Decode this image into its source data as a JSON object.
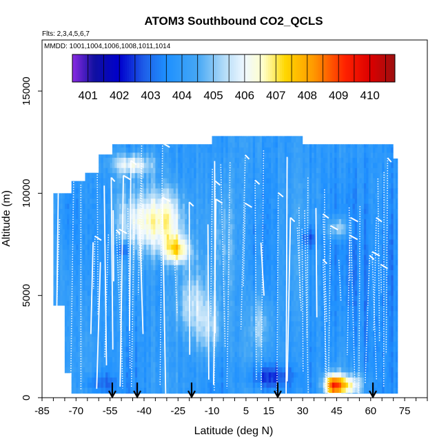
{
  "chart_data": {
    "type": "heatmap",
    "title": "ATOM3 Southbound CO2_QCLS",
    "flights_note": "Flts: 2,3,4,5,6,7",
    "mmdd_note": "MMDD: 1001,1004,1006,1008,1011,1014",
    "xlabel": "Latitude (deg N)",
    "ylabel": "Altitude (m)",
    "xlim": [
      -85,
      85
    ],
    "ylim": [
      0,
      17500
    ],
    "x_ticks": [
      -85,
      -70,
      -55,
      -40,
      -25,
      -10,
      5,
      15,
      30,
      45,
      60,
      75
    ],
    "y_ticks": [
      0,
      5000,
      10000,
      15000
    ],
    "colorbar": {
      "labels": [
        "401",
        "402",
        "403",
        "404",
        "405",
        "406",
        "407",
        "408",
        "409",
        "410"
      ],
      "range": [
        400.5,
        410.8
      ],
      "stops": [
        {
          "v": 400.5,
          "c": "#8a2be2"
        },
        {
          "v": 401.2,
          "c": "#1010a0"
        },
        {
          "v": 402.0,
          "c": "#0000cd"
        },
        {
          "v": 402.8,
          "c": "#1e5fe8"
        },
        {
          "v": 403.5,
          "c": "#1e90ff"
        },
        {
          "v": 404.5,
          "c": "#46a8f5"
        },
        {
          "v": 405.4,
          "c": "#b8def8"
        },
        {
          "v": 406.0,
          "c": "#f0f8ff"
        },
        {
          "v": 406.6,
          "c": "#ffffc8"
        },
        {
          "v": 407.3,
          "c": "#ffd700"
        },
        {
          "v": 408.2,
          "c": "#ff9900"
        },
        {
          "v": 409.2,
          "c": "#ff2200"
        },
        {
          "v": 410.0,
          "c": "#dd0000"
        },
        {
          "v": 410.8,
          "c": "#9c1010"
        }
      ]
    },
    "arrows_latitude": [
      -54,
      -43,
      -19,
      19,
      61
    ],
    "coverage_top_m": [
      {
        "lat": -80,
        "alt": 10000
      },
      {
        "lat": -72,
        "alt": 10600
      },
      {
        "lat": -66,
        "alt": 11000
      },
      {
        "lat": -60,
        "alt": 11900
      },
      {
        "lat": -54,
        "alt": 12400
      },
      {
        "lat": -20,
        "alt": 12400
      },
      {
        "lat": -10,
        "alt": 12800
      },
      {
        "lat": 27,
        "alt": 12800
      },
      {
        "lat": 30,
        "alt": 12400
      },
      {
        "lat": 66,
        "alt": 12400
      },
      {
        "lat": 70,
        "alt": 11700
      },
      {
        "lat": 72,
        "alt": 10500
      }
    ],
    "coverage_bottom_m": [
      {
        "lat": -80,
        "alt": 4500
      },
      {
        "lat": -75,
        "alt": 1200
      },
      {
        "lat": -72,
        "alt": 200
      },
      {
        "lat": 72,
        "alt": 0
      }
    ],
    "base_value": 403.9,
    "features": [
      {
        "lat": -42,
        "alt": 8500,
        "rlat": 10,
        "ralt": 1500,
        "value": 405.8
      },
      {
        "lat": -30,
        "alt": 8600,
        "rlat": 8,
        "ralt": 1600,
        "value": 406.4
      },
      {
        "lat": -26,
        "alt": 7100,
        "rlat": 6,
        "ralt": 700,
        "value": 406.7
      },
      {
        "lat": -46,
        "alt": 11300,
        "rlat": 9,
        "ralt": 500,
        "value": 406.1
      },
      {
        "lat": -50,
        "alt": 7100,
        "rlat": 3,
        "ralt": 400,
        "value": 402.0
      },
      {
        "lat": -20,
        "alt": 4700,
        "rlat": 8,
        "ralt": 1600,
        "value": 405.4
      },
      {
        "lat": -12,
        "alt": 3200,
        "rlat": 7,
        "ralt": 1400,
        "value": 405.2
      },
      {
        "lat": 11,
        "alt": 3500,
        "rlat": 5,
        "ralt": 1400,
        "value": 405.0
      },
      {
        "lat": 43,
        "alt": 500,
        "rlat": 4,
        "ralt": 550,
        "value": 408.6
      },
      {
        "lat": 50,
        "alt": 500,
        "rlat": 6,
        "ralt": 500,
        "value": 406.6
      },
      {
        "lat": 15,
        "alt": 900,
        "rlat": 10,
        "ralt": 600,
        "value": 402.4
      },
      {
        "lat": 32,
        "alt": 7700,
        "rlat": 4,
        "ralt": 500,
        "value": 402.6
      },
      {
        "lat": 45,
        "alt": 8200,
        "rlat": 5,
        "ralt": 500,
        "value": 405.6
      },
      {
        "lat": 55,
        "alt": 5500,
        "rlat": 12,
        "ralt": 5000,
        "value": 403.4
      },
      {
        "lat": -74,
        "alt": 9000,
        "rlat": 4,
        "ralt": 2000,
        "value": 403.4
      },
      {
        "lat": 68,
        "alt": 7000,
        "rlat": 4,
        "ralt": 4000,
        "value": 403.2
      },
      {
        "lat": -60,
        "alt": 600,
        "rlat": 8,
        "ralt": 500,
        "value": 402.9
      },
      {
        "lat": -5,
        "alt": 7500,
        "rlat": 5,
        "ralt": 3000,
        "value": 404.6
      }
    ]
  }
}
